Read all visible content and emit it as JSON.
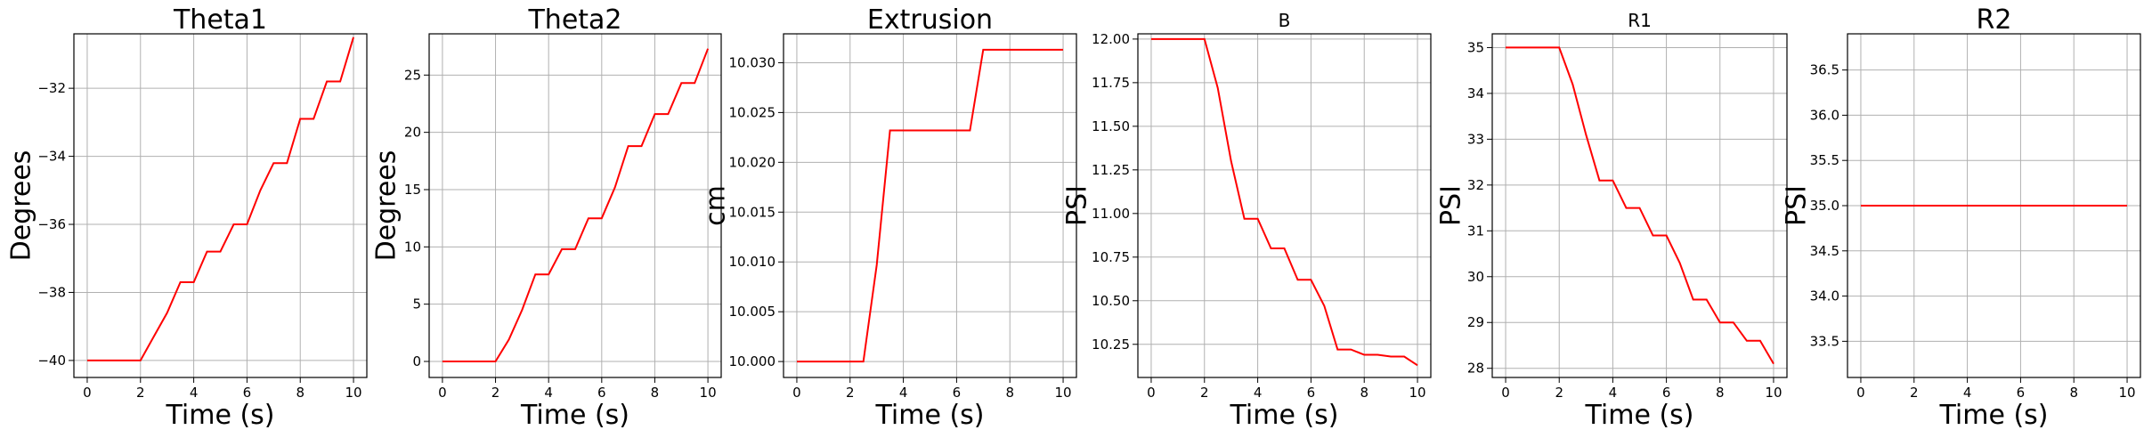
{
  "chart_data": [
    {
      "type": "line",
      "title": "Theta1",
      "xlabel": "Time (s)",
      "ylabel": "Degrees",
      "xlim": [
        -0.5,
        10.5
      ],
      "ylim": [
        -40.5,
        -30.4
      ],
      "xticks": [
        0,
        2,
        4,
        6,
        8,
        10
      ],
      "yticks": [
        -40,
        -38,
        -36,
        -34,
        -32
      ],
      "ytick_labels": [
        "−40",
        "−38",
        "−36",
        "−34",
        "−32"
      ],
      "grid": true,
      "color": "#ff0000",
      "x": [
        0,
        2,
        2.5,
        3,
        3.5,
        4,
        4.5,
        5,
        5.5,
        6,
        6.5,
        7,
        7.5,
        8,
        8.5,
        9,
        9.5,
        10
      ],
      "y": [
        -40,
        -40,
        -39.3,
        -38.6,
        -37.7,
        -37.7,
        -36.8,
        -36.8,
        -36.0,
        -36.0,
        -35.0,
        -34.2,
        -34.2,
        -32.9,
        -32.9,
        -31.8,
        -31.8,
        -30.5
      ]
    },
    {
      "type": "line",
      "title": "Theta2",
      "xlabel": "Time (s)",
      "ylabel": "Degrees",
      "xlim": [
        -0.5,
        10.5
      ],
      "ylim": [
        -1.4,
        28.6
      ],
      "xticks": [
        0,
        2,
        4,
        6,
        8,
        10
      ],
      "yticks": [
        0,
        5,
        10,
        15,
        20,
        25
      ],
      "ytick_labels": [
        "0",
        "5",
        "10",
        "15",
        "20",
        "25"
      ],
      "grid": true,
      "color": "#ff0000",
      "x": [
        0,
        2,
        2.5,
        3,
        3.5,
        4,
        4.5,
        5,
        5.5,
        6,
        6.5,
        7,
        7.5,
        8,
        8.5,
        9,
        9.5,
        10
      ],
      "y": [
        0,
        0,
        1.9,
        4.5,
        7.6,
        7.6,
        9.8,
        9.8,
        12.5,
        12.5,
        15.2,
        18.8,
        18.8,
        21.6,
        21.6,
        24.3,
        24.3,
        27.3
      ]
    },
    {
      "type": "line",
      "title": "Extrusion",
      "xlabel": "Time (s)",
      "ylabel": "cm",
      "xlim": [
        -0.5,
        10.5
      ],
      "ylim": [
        9.9984,
        10.0329
      ],
      "xticks": [
        0,
        2,
        4,
        6,
        8,
        10
      ],
      "yticks": [
        10.0,
        10.005,
        10.01,
        10.015,
        10.02,
        10.025,
        10.03
      ],
      "ytick_labels": [
        "10.000",
        "10.005",
        "10.010",
        "10.015",
        "10.020",
        "10.025",
        "10.030"
      ],
      "grid": true,
      "color": "#ff0000",
      "x": [
        0,
        2.5,
        3,
        3.5,
        6.5,
        7,
        10
      ],
      "y": [
        10.0,
        10.0,
        10.0097,
        10.0232,
        10.0232,
        10.0313,
        10.0313
      ]
    },
    {
      "type": "line",
      "title": "B",
      "xlabel": "Time (s)",
      "ylabel": "PSI",
      "xlim": [
        -0.5,
        10.5
      ],
      "ylim": [
        10.06,
        12.03
      ],
      "xticks": [
        0,
        2,
        4,
        6,
        8,
        10
      ],
      "yticks": [
        10.25,
        10.5,
        10.75,
        11.0,
        11.25,
        11.5,
        11.75,
        12.0
      ],
      "ytick_labels": [
        "10.25",
        "10.50",
        "10.75",
        "11.00",
        "11.25",
        "11.50",
        "11.75",
        "12.00"
      ],
      "grid": true,
      "color": "#ff0000",
      "x": [
        0,
        2,
        2.5,
        3,
        3.5,
        4,
        4.5,
        5,
        5.5,
        6,
        6.5,
        7,
        7.5,
        8,
        8.5,
        9,
        9.5,
        10
      ],
      "y": [
        12.0,
        12.0,
        11.72,
        11.3,
        10.97,
        10.97,
        10.8,
        10.8,
        10.62,
        10.62,
        10.47,
        10.22,
        10.22,
        10.19,
        10.19,
        10.18,
        10.18,
        10.13
      ]
    },
    {
      "type": "line",
      "title": "R1",
      "xlabel": "Time (s)",
      "ylabel": "PSI",
      "xlim": [
        -0.5,
        10.5
      ],
      "ylim": [
        27.8,
        35.3
      ],
      "xticks": [
        0,
        2,
        4,
        6,
        8,
        10
      ],
      "yticks": [
        28,
        29,
        30,
        31,
        32,
        33,
        34,
        35
      ],
      "ytick_labels": [
        "28",
        "29",
        "30",
        "31",
        "32",
        "33",
        "34",
        "35"
      ],
      "grid": true,
      "color": "#ff0000",
      "x": [
        0,
        2,
        2.5,
        3,
        3.5,
        4,
        4.5,
        5,
        5.5,
        6,
        6.5,
        7,
        7.5,
        8,
        8.5,
        9,
        9.5,
        10
      ],
      "y": [
        35.0,
        35.0,
        34.2,
        33.1,
        32.1,
        32.1,
        31.5,
        31.5,
        30.9,
        30.9,
        30.3,
        29.5,
        29.5,
        29.0,
        29.0,
        28.6,
        28.6,
        28.1
      ]
    },
    {
      "type": "line",
      "title": "R2",
      "xlabel": "Time (s)",
      "ylabel": "PSI",
      "xlim": [
        -0.5,
        10.5
      ],
      "ylim": [
        33.1,
        36.9
      ],
      "xticks": [
        0,
        2,
        4,
        6,
        8,
        10
      ],
      "yticks": [
        33.5,
        34.0,
        34.5,
        35.0,
        35.5,
        36.0,
        36.5
      ],
      "ytick_labels": [
        "33.5",
        "34.0",
        "34.5",
        "35.0",
        "35.5",
        "36.0",
        "36.5"
      ],
      "grid": true,
      "color": "#ff0000",
      "x": [
        0,
        10
      ],
      "y": [
        35.0,
        35.0
      ]
    }
  ]
}
